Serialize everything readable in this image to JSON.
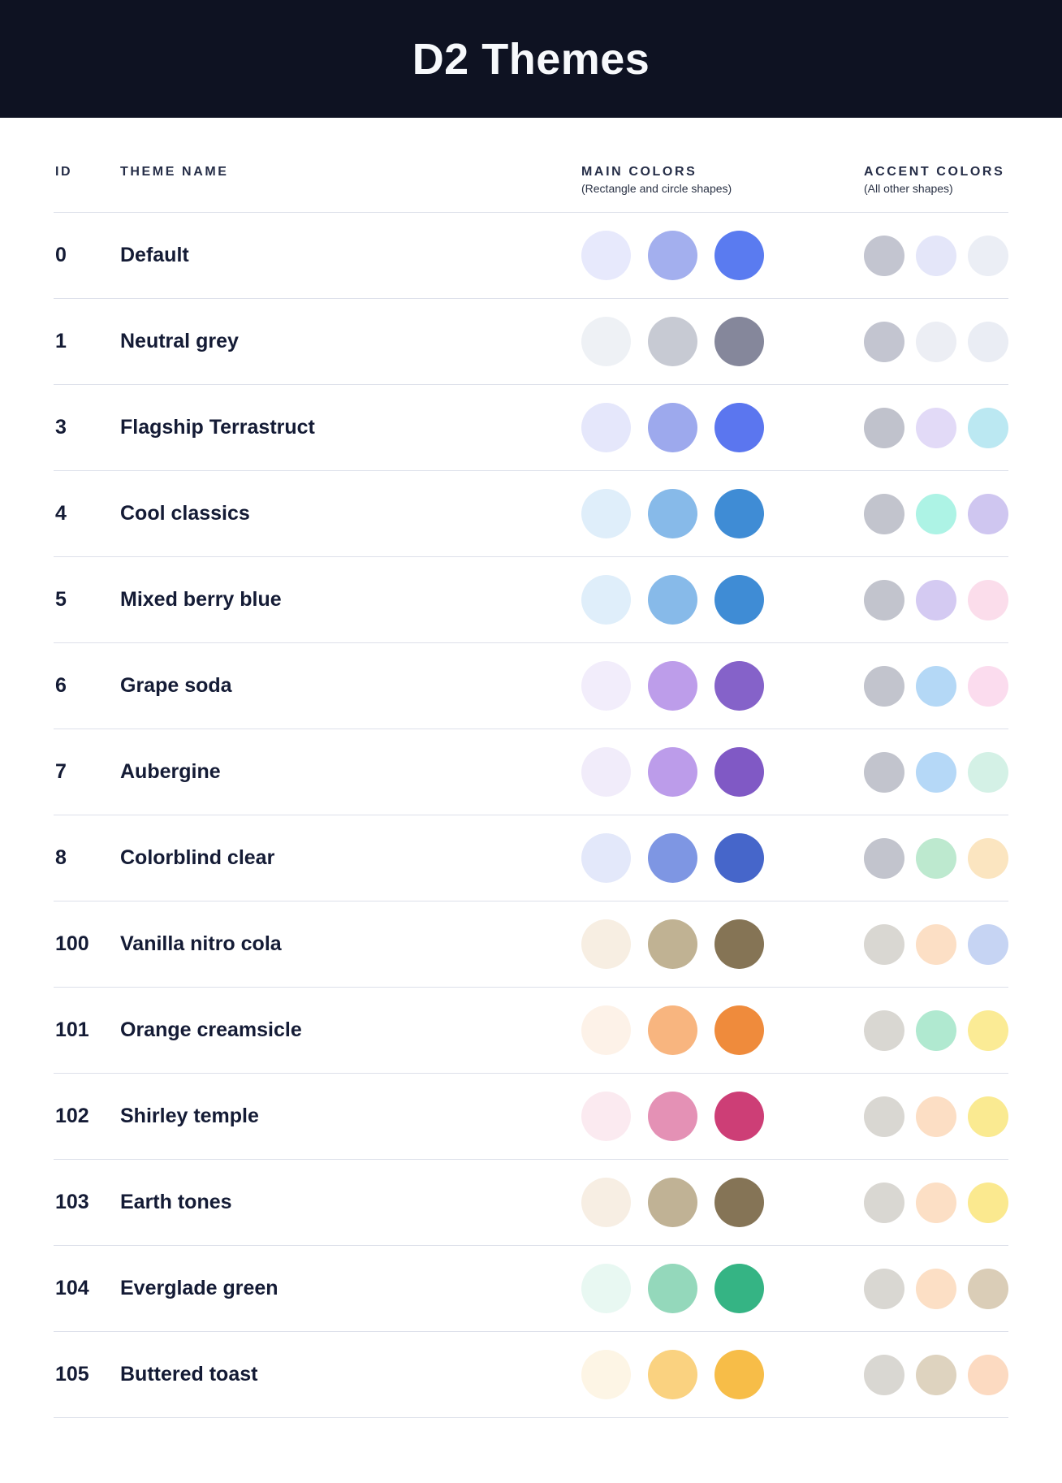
{
  "header": {
    "title": "D2 Themes"
  },
  "table": {
    "columns": {
      "id_label": "ID",
      "theme_name_label": "THEME NAME",
      "main_colors_label": "MAIN COLORS",
      "main_colors_sub": "(Rectangle and circle shapes)",
      "accent_colors_label": "ACCENT COLORS",
      "accent_colors_sub": "(All other shapes)"
    },
    "rows": [
      {
        "id": "0",
        "name": "Default",
        "main": [
          "#E7E9FC",
          "#A3AFEE",
          "#5A7BF0"
        ],
        "accent": [
          "#C3C5D0",
          "#E4E6F9",
          "#EBEEF5"
        ]
      },
      {
        "id": "1",
        "name": "Neutral grey",
        "main": [
          "#EEF1F5",
          "#C7CAD3",
          "#85879B"
        ],
        "accent": [
          "#C3C5D0",
          "#ECEEF4",
          "#EAEDF4"
        ]
      },
      {
        "id": "3",
        "name": "Flagship Terrastruct",
        "main": [
          "#E5E7FB",
          "#9DA9ED",
          "#5B76EF"
        ],
        "accent": [
          "#C0C2CC",
          "#E2DAF7",
          "#BBE8F2"
        ]
      },
      {
        "id": "4",
        "name": "Cool classics",
        "main": [
          "#DFEEFA",
          "#87BAE9",
          "#3F8CD5"
        ],
        "accent": [
          "#C2C4CD",
          "#ADF3E5",
          "#CFC6F0"
        ]
      },
      {
        "id": "5",
        "name": "Mixed berry blue",
        "main": [
          "#DFEEFA",
          "#87BAE9",
          "#3F8CD5"
        ],
        "accent": [
          "#C2C4CD",
          "#D4CAF2",
          "#FBDDEB"
        ]
      },
      {
        "id": "6",
        "name": "Grape soda",
        "main": [
          "#F2EDFB",
          "#BD9DEA",
          "#8562C9"
        ],
        "accent": [
          "#C2C4CD",
          "#B4D8F6",
          "#FBDCEE"
        ]
      },
      {
        "id": "7",
        "name": "Aubergine",
        "main": [
          "#F1ECFA",
          "#BC9CEA",
          "#8059C5"
        ],
        "accent": [
          "#C2C4CD",
          "#B5D8F7",
          "#D4F1E6"
        ]
      },
      {
        "id": "8",
        "name": "Colorblind clear",
        "main": [
          "#E3E8FA",
          "#7E96E3",
          "#4666CA"
        ],
        "accent": [
          "#C2C4CD",
          "#BDE9CF",
          "#FBE5C0"
        ]
      },
      {
        "id": "100",
        "name": "Vanilla nitro cola",
        "main": [
          "#F7EEE2",
          "#C0B293",
          "#857455"
        ],
        "accent": [
          "#D9D7D2",
          "#FCDFC5",
          "#C6D4F3"
        ]
      },
      {
        "id": "101",
        "name": "Orange creamsicle",
        "main": [
          "#FDF2E8",
          "#F8B57F",
          "#EF8B3C"
        ],
        "accent": [
          "#D9D7D2",
          "#B0E9D0",
          "#FBEB95"
        ]
      },
      {
        "id": "102",
        "name": "Shirley temple",
        "main": [
          "#FBEAF0",
          "#E491B5",
          "#CD3E76"
        ],
        "accent": [
          "#D9D7D2",
          "#FCDEC4",
          "#FAEA91"
        ]
      },
      {
        "id": "103",
        "name": "Earth tones",
        "main": [
          "#F7EEE3",
          "#C0B295",
          "#857456"
        ],
        "accent": [
          "#D9D7D2",
          "#FCDFC5",
          "#FBE98F"
        ]
      },
      {
        "id": "104",
        "name": "Everglade green",
        "main": [
          "#E8F8F2",
          "#94D8BB",
          "#35B484"
        ],
        "accent": [
          "#D9D7D2",
          "#FCDFC5",
          "#DACDB7"
        ]
      },
      {
        "id": "105",
        "name": "Buttered toast",
        "main": [
          "#FDF5E5",
          "#FAD280",
          "#F7BD48"
        ],
        "accent": [
          "#D9D7D2",
          "#DED3BF",
          "#FCDAC1"
        ]
      }
    ]
  },
  "colors": {
    "header_bg": "#0E1222",
    "title_color": "#F7F9FC",
    "heading_text": "#252D47",
    "subheading_text": "#2A3245",
    "row_text": "#141B35",
    "divider": "#DDE0EA",
    "page_bg": "#FFFFFF"
  }
}
